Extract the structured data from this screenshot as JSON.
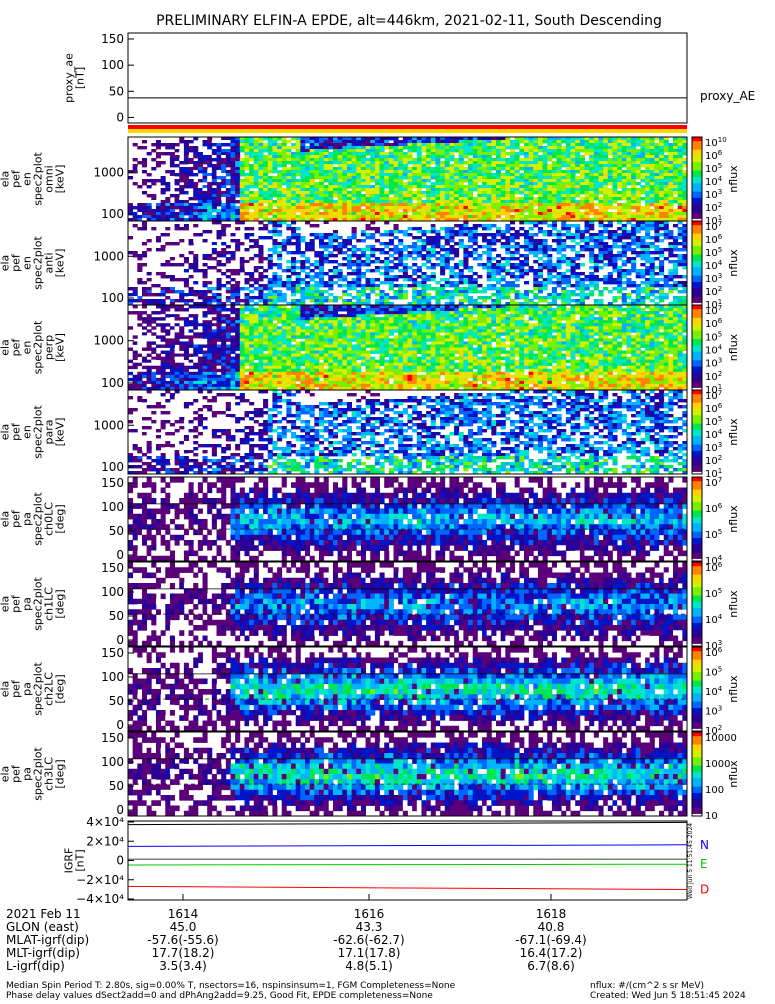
{
  "chart_data": {
    "type": "heatmap",
    "title": "PRELIMINARY ELFIN-A EPDE, alt=446km, 2021-02-11, South Descending",
    "panels": [
      {
        "id": "proxy_ae",
        "type": "line",
        "ylabel": [
          "proxy_ae",
          "[nT]"
        ],
        "yticks": [
          "150",
          "100",
          "50",
          "0"
        ],
        "ylim": [
          -10,
          155
        ],
        "series": [
          {
            "name": "proxy_AE",
            "x": [
              0,
              1
            ],
            "y": [
              36,
              36
            ]
          }
        ],
        "legend": "proxy_AE"
      },
      {
        "id": "en-omni",
        "type": "heatmap",
        "ylabel": [
          "ela",
          "pef",
          "en",
          "spec2plot",
          "omni",
          "[keV]"
        ],
        "yticks": [
          "1000",
          "100"
        ],
        "log": true,
        "cbar": {
          "ticks": [
            "10",
            "6",
            "5",
            "4",
            "3",
            "2",
            "1"
          ],
          "exp_base": "10",
          "label": "nflux"
        }
      },
      {
        "id": "en-anti",
        "type": "heatmap",
        "ylabel": [
          "ela",
          "pef",
          "en",
          "spec2plot",
          "anti",
          "[keV]"
        ],
        "yticks": [
          "1000",
          "100"
        ],
        "log": true,
        "cbar": {
          "ticks": [
            "7",
            "6",
            "5",
            "4",
            "3",
            "2",
            "1"
          ],
          "exp_base": "10",
          "label": "nflux"
        }
      },
      {
        "id": "en-perp",
        "type": "heatmap",
        "ylabel": [
          "ela",
          "pef",
          "en",
          "spec2plot",
          "perp",
          "[keV]"
        ],
        "yticks": [
          "1000",
          "100"
        ],
        "log": true,
        "cbar": {
          "ticks": [
            "7",
            "6",
            "5",
            "4",
            "3",
            "2",
            "1"
          ],
          "exp_base": "10",
          "label": "nflux"
        }
      },
      {
        "id": "en-para",
        "type": "heatmap",
        "ylabel": [
          "ela",
          "pef",
          "en",
          "spec2plot",
          "para",
          "[keV]"
        ],
        "yticks": [
          "1000",
          "100"
        ],
        "log": true,
        "cbar": {
          "ticks": [
            "7",
            "6",
            "5",
            "4",
            "3",
            "2",
            "1"
          ],
          "exp_base": "10",
          "label": "nflux"
        }
      },
      {
        "id": "pa-ch0",
        "type": "heatmap",
        "ylabel": [
          "ela",
          "pef",
          "pa",
          "spec2plot",
          "ch0LC",
          "[deg]"
        ],
        "yticks": [
          "150",
          "100",
          "50",
          "0"
        ],
        "cbar": {
          "ticks": [
            "7",
            "6",
            "5",
            "4"
          ],
          "exp_base": "10",
          "label": "nflux"
        }
      },
      {
        "id": "pa-ch1",
        "type": "heatmap",
        "ylabel": [
          "ela",
          "pef",
          "pa",
          "spec2plot",
          "ch1LC",
          "[deg]"
        ],
        "yticks": [
          "150",
          "100",
          "50",
          "0"
        ],
        "cbar": {
          "ticks": [
            "6",
            "5",
            "4",
            "3"
          ],
          "exp_base": "10",
          "label": "nflux"
        }
      },
      {
        "id": "pa-ch2",
        "type": "heatmap",
        "ylabel": [
          "ela",
          "pef",
          "pa",
          "spec2plot",
          "ch2LC",
          "[deg]"
        ],
        "yticks": [
          "150",
          "100",
          "50",
          "0"
        ],
        "cbar": {
          "ticks": [
            "6",
            "5",
            "4",
            "3",
            "2"
          ],
          "exp_base": "10",
          "label": "nflux"
        }
      },
      {
        "id": "pa-ch3",
        "type": "heatmap",
        "ylabel": [
          "ela",
          "pef",
          "pa",
          "spec2plot",
          "ch3LC",
          "[deg]"
        ],
        "yticks": [
          "150",
          "100",
          "50",
          "0"
        ],
        "cbar": {
          "ticks": [
            "10000",
            "1000",
            "100",
            "10"
          ],
          "exp_base": "",
          "label": "nflux"
        }
      },
      {
        "id": "igrf",
        "type": "line",
        "ylabel": [
          "IGRF",
          "[nT]"
        ],
        "yticks": [
          "4×10⁴",
          "2×10⁴",
          "0",
          "−2×10⁴",
          "−4×10⁴"
        ],
        "ylim": [
          -45000,
          42000
        ],
        "series": [
          {
            "name": "N",
            "color": "#0000ff",
            "x": [
              0,
              1
            ],
            "y": [
              14000,
              15800
            ]
          },
          {
            "name": "E",
            "color": "#00cc00",
            "x": [
              0,
              1
            ],
            "y": [
              -6400,
              -5600
            ]
          },
          {
            "name": "D",
            "color": "#ff0000",
            "x": [
              0,
              1
            ],
            "y": [
              -30000,
              -33500
            ]
          },
          {
            "name": "",
            "color": "#000000",
            "x": [
              0,
              1
            ],
            "y": [
              38000,
              40500
            ]
          }
        ],
        "side_stamp": "Wed Jun  5 11:51:45 2024"
      }
    ],
    "x_axis": {
      "row_labels": [
        "2021 Feb 11",
        "GLON (east)",
        "MLAT-igrf(dip)",
        "MLT-igrf(dip)",
        "L-igrf(dip)"
      ],
      "ticks": [
        {
          "label": "1614",
          "values": [
            "45.0",
            "-57.6(-55.6)",
            "17.7(18.2)",
            "3.5(3.4)"
          ]
        },
        {
          "label": "1616",
          "values": [
            "43.3",
            "-62.6(-62.7)",
            "17.1(17.8)",
            "4.8(5.1)"
          ]
        },
        {
          "label": "1618",
          "values": [
            "40.8",
            "-67.1(-69.4)",
            "16.4(17.2)",
            "6.7(8.6)"
          ]
        }
      ]
    }
  },
  "footer": {
    "line1": "Median Spin Period T: 2.80s, sig=0.00% T, nsectors=16, nspinsinsum=1, FGM Completeness=None",
    "line2": "Phase delay values dSect2add=0 and dPhAng2add=9.25, Good Fit, EPDE completeness=None",
    "units": "nflux: #/(cm^2 s sr MeV)",
    "created": "Created: Wed Jun  5 18:51:45 2024"
  },
  "colors": {
    "strip_red": "#ff0000",
    "strip_yellow": "#ffd800",
    "spectrum": [
      "#ffffff",
      "#5a0078",
      "#2a0096",
      "#0014c8",
      "#0064ff",
      "#00b4ff",
      "#00e6c8",
      "#00e650",
      "#78f000",
      "#d2f000",
      "#ffd200",
      "#ff8200",
      "#ff0000"
    ]
  }
}
